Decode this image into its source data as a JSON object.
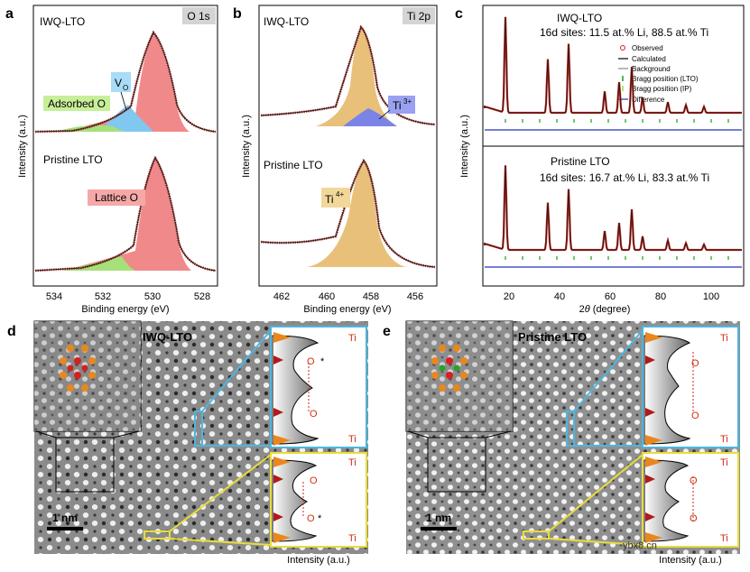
{
  "panel_letters": {
    "a": "a",
    "b": "b",
    "c": "c",
    "d": "d",
    "e": "e"
  },
  "panel_a": {
    "tag": "O 1s",
    "top_label": "IWQ-LTO",
    "bottom_label": "Pristine LTO",
    "adsorbed": "Adsorbed O",
    "vacancy": "V",
    "vacancy_sub": "O",
    "lattice": "Lattice O",
    "ylabel": "Intensity (a.u.)",
    "xlabel": "Binding energy (eV)",
    "ticks": [
      "534",
      "532",
      "530",
      "528"
    ]
  },
  "panel_b": {
    "tag": "Ti 2p",
    "top_label": "IWQ-LTO",
    "bottom_label": "Pristine LTO",
    "ti3": "Ti",
    "ti3_sup": "3+",
    "ti4": "Ti",
    "ti4_sup": "4+",
    "ylabel": "Intensity (a.u.)",
    "xlabel": "Binding energy (eV)",
    "ticks": [
      "462",
      "460",
      "458",
      "456"
    ]
  },
  "panel_c": {
    "top_label": "IWQ-LTO",
    "top_sites": "16d sites: 11.5 at.% Li, 88.5 at.% Ti",
    "bottom_label": "Pristine LTO",
    "bottom_sites": "16d sites: 16.7 at.% Li, 83.3 at.% Ti",
    "legend": [
      "Observed",
      "Calculated",
      "Background",
      "Bragg position (LTO)",
      "Bragg position (IP)",
      "Difference"
    ],
    "ylabel": "Intensity (a.u.)",
    "xlabel_theta": "θ",
    "xlabel_rest": "(degree)",
    "xlabel_prefix": "2",
    "ticks": [
      "20",
      "40",
      "60",
      "80",
      "100"
    ]
  },
  "panel_d": {
    "title": "IWQ-LTO",
    "scale": "1 nm",
    "ti": "Ti",
    "o": "O",
    "star": "*",
    "xlabel": "Intensity (a.u.)"
  },
  "panel_e": {
    "title": "Pristine LTO",
    "scale": "1 nm",
    "ti": "Ti",
    "o": "O",
    "xlabel": "Intensity (a.u.)"
  },
  "watermark": "ybx8.cn",
  "colors": {
    "red_fill": "#f08a8a",
    "blue_fill": "#80c8f0",
    "green_fill": "#a6e07a",
    "tan_fill": "#e9c07a",
    "violet_fill": "#7b83e6",
    "data_red": "#b3261e",
    "cyan_box": "#4cb6e0",
    "yellow_box": "#e8dc3c"
  }
}
